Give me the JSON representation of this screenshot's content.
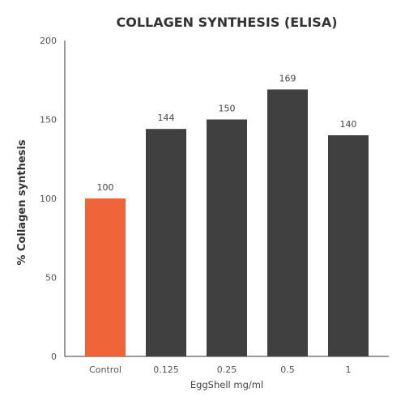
{
  "chart_data": {
    "type": "bar",
    "title": "COLLAGEN SYNTHESIS (ELISA)",
    "xlabel": "EggShell mg/ml",
    "ylabel": "% Collagen synthesis",
    "categories": [
      "Control",
      "0.125",
      "0.25",
      "0.5",
      "1"
    ],
    "values": [
      100,
      144,
      150,
      169,
      140
    ],
    "data_labels": [
      "100",
      "144",
      "150",
      "169",
      "140"
    ],
    "ylim": [
      0,
      200
    ],
    "yticks": [
      0,
      50,
      100,
      150,
      200
    ],
    "grid": false,
    "bar_colors": [
      "#f0643a",
      "#404040",
      "#404040",
      "#404040",
      "#404040"
    ]
  }
}
